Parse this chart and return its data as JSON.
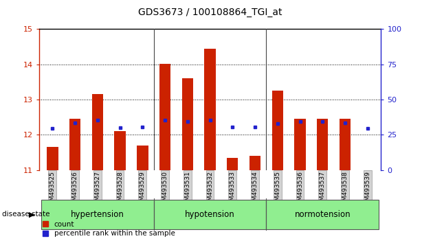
{
  "title": "GDS3673 / 100108864_TGI_at",
  "samples": [
    "GSM493525",
    "GSM493526",
    "GSM493527",
    "GSM493528",
    "GSM493529",
    "GSM493530",
    "GSM493531",
    "GSM493532",
    "GSM493533",
    "GSM493534",
    "GSM493535",
    "GSM493536",
    "GSM493537",
    "GSM493538",
    "GSM493539"
  ],
  "count_values": [
    11.65,
    12.45,
    13.15,
    12.1,
    11.7,
    14.02,
    13.6,
    14.45,
    11.35,
    11.4,
    13.25,
    12.45,
    12.45,
    12.45,
    11.0
  ],
  "percentile_values": [
    12.18,
    12.35,
    12.42,
    12.2,
    12.22,
    12.42,
    12.38,
    12.42,
    12.22,
    12.22,
    12.32,
    12.38,
    12.38,
    12.35,
    12.18
  ],
  "groups": [
    {
      "label": "hypertension",
      "indices": [
        0,
        1,
        2,
        3,
        4
      ],
      "color": "#90ee90"
    },
    {
      "label": "hypotension",
      "indices": [
        5,
        6,
        7,
        8,
        9
      ],
      "color": "#90ee90"
    },
    {
      "label": "normotension",
      "indices": [
        10,
        11,
        12,
        13,
        14
      ],
      "color": "#90ee90"
    }
  ],
  "ylim_left": [
    11,
    15
  ],
  "ylim_right": [
    0,
    100
  ],
  "yticks_left": [
    11,
    12,
    13,
    14,
    15
  ],
  "yticks_right": [
    0,
    25,
    50,
    75,
    100
  ],
  "bar_color": "#cc2200",
  "dot_color": "#2222cc",
  "bar_width": 0.5,
  "left_axis_color": "#cc2200",
  "right_axis_color": "#2222cc",
  "grid_color": "#000000",
  "group_separator_color": "#555555",
  "legend_count_label": "count",
  "legend_pct_label": "percentile rank within the sample",
  "disease_state_label": "disease state"
}
